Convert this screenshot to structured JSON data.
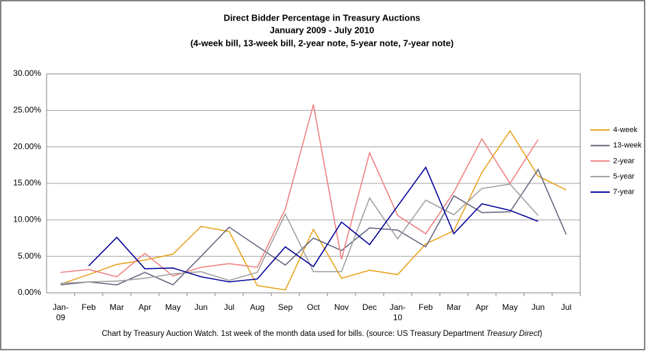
{
  "chart_data": {
    "type": "line",
    "title": [
      "Direct Bidder Percentage in Treasury Auctions",
      "January 2009 - July 2010",
      "(4-week bill, 13-week bill, 2-year note, 5-year note, 7-year note)"
    ],
    "categories": [
      "Jan-\n09",
      "Feb",
      "Mar",
      "Apr",
      "May",
      "Jun",
      "Jul",
      "Aug",
      "Sep",
      "Oct",
      "Nov",
      "Dec",
      "Jan-\n10",
      "Feb",
      "Mar",
      "Apr",
      "May",
      "Jun",
      "Jul"
    ],
    "series": [
      {
        "name": "4-week",
        "color": "#e8a31c",
        "values": [
          1.2,
          2.5,
          3.9,
          4.5,
          5.3,
          9.1,
          8.4,
          1.0,
          0.4,
          8.7,
          2.0,
          3.1,
          2.5,
          6.7,
          8.5,
          16.5,
          22.2,
          16.0,
          14.1
        ]
      },
      {
        "name": "13-week",
        "color": "#666680",
        "values": [
          1.1,
          1.5,
          1.1,
          2.8,
          1.1,
          5.0,
          9.0,
          6.4,
          3.8,
          7.5,
          5.8,
          8.9,
          8.6,
          6.3,
          13.3,
          11.0,
          11.1,
          16.9,
          8.0
        ]
      },
      {
        "name": "2-year",
        "color": "#f08080",
        "values": [
          2.8,
          3.2,
          2.2,
          5.4,
          2.3,
          3.5,
          4.0,
          3.5,
          11.5,
          25.8,
          4.6,
          19.2,
          10.6,
          8.1,
          13.8,
          21.1,
          15.0,
          21.0,
          null
        ]
      },
      {
        "name": "5-year",
        "color": "#a0a0a0",
        "values": [
          1.3,
          1.5,
          1.6,
          2.0,
          2.6,
          2.9,
          1.7,
          2.8,
          10.8,
          2.9,
          2.9,
          13.0,
          7.4,
          12.7,
          10.7,
          14.3,
          14.9,
          10.6,
          null
        ]
      },
      {
        "name": "7-year",
        "color": "#000099",
        "values": [
          null,
          3.7,
          7.6,
          3.3,
          3.4,
          2.2,
          1.5,
          1.9,
          6.3,
          3.6,
          9.7,
          6.6,
          11.9,
          17.2,
          8.1,
          12.2,
          11.3,
          9.8,
          null
        ]
      }
    ],
    "ylim": [
      0,
      30
    ],
    "yticks": [
      {
        "value": 0,
        "label": "0.00%"
      },
      {
        "value": 5,
        "label": "5.00%"
      },
      {
        "value": 10,
        "label": "10.00%"
      },
      {
        "value": 15,
        "label": "15.00%"
      },
      {
        "value": 20,
        "label": "20.00%"
      },
      {
        "value": 25,
        "label": "25.00%"
      },
      {
        "value": 30,
        "label": "30.00%"
      }
    ],
    "grid": true,
    "legend": "right",
    "note": [
      "Chart by Treasury Auction Watch. 1st week of the month data used for bills.  (source:  US Treasury Department ",
      "Treasury Direct",
      ")"
    ]
  }
}
